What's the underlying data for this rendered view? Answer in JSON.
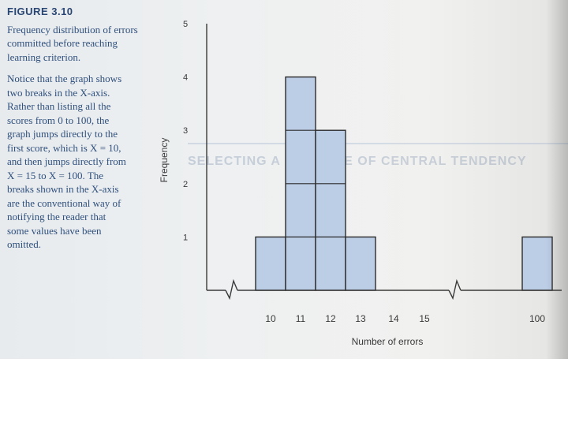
{
  "caption": {
    "figure_label": "FIGURE 3.10",
    "title": "Frequency distribution of errors committed before reaching learning criterion.",
    "note_lines": [
      "Notice that the graph shows",
      "two breaks in the X-axis.",
      "Rather than listing all the",
      "scores from 0 to 100, the",
      "graph jumps directly to the",
      "first score, which is X = 10,",
      "and then jumps directly from",
      "X = 15 to X = 100. The",
      "breaks shown in the X-axis",
      "are the conventional way of",
      "notifying the reader that",
      "some values have been",
      "omitted."
    ]
  },
  "background_text": {
    "heading": "SELECTING A MEASURE OF CENTRAL TENDENCY"
  },
  "chart_data": {
    "type": "bar",
    "title": "",
    "xlabel": "Number of errors",
    "ylabel": "Frequency",
    "x_ticks": [
      "10",
      "11",
      "12",
      "13",
      "14",
      "15",
      "100"
    ],
    "y_ticks": [
      "1",
      "2",
      "3",
      "4",
      "5"
    ],
    "ylim": [
      0,
      5
    ],
    "axis_breaks": [
      [
        0,
        10
      ],
      [
        15,
        100
      ]
    ],
    "bars": [
      {
        "x": 10,
        "y": 1
      },
      {
        "x": 11,
        "y": 4
      },
      {
        "x": 12,
        "y": 3
      },
      {
        "x": 13,
        "y": 1
      },
      {
        "x": 100,
        "y": 1
      }
    ],
    "grid": false,
    "colors": {
      "bar_fill": "#bccde6",
      "bar_stroke": "#2b2b2b",
      "axis": "#3a3a3a"
    }
  }
}
